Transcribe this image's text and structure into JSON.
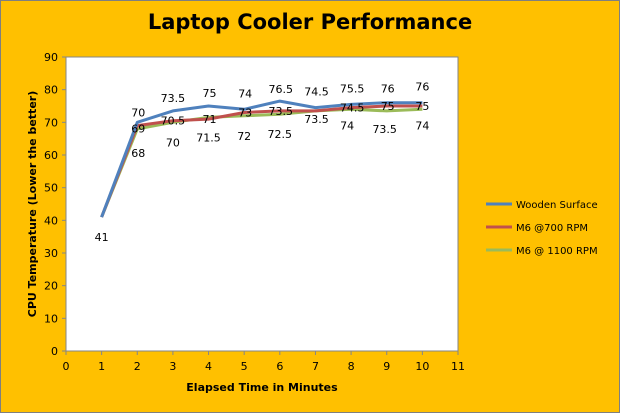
{
  "chart_data": {
    "type": "line",
    "title": "Laptop Cooler Performance",
    "xlabel": "Elapsed Time in Minutes",
    "ylabel": "CPU Temperature (Lower the better)",
    "xlim": [
      0,
      11
    ],
    "ylim": [
      0,
      90
    ],
    "x_ticks": [
      0,
      1,
      2,
      3,
      4,
      5,
      6,
      7,
      8,
      9,
      10,
      11
    ],
    "y_ticks": [
      0,
      10,
      20,
      30,
      40,
      50,
      60,
      70,
      80,
      90
    ],
    "grid": false,
    "legend_position": "right",
    "x": [
      1,
      2,
      3,
      4,
      5,
      6,
      7,
      8,
      9,
      10
    ],
    "series": [
      {
        "name": "Wooden Surface",
        "color": "#4F81BD",
        "values": [
          41,
          70,
          73.5,
          75,
          74,
          76.5,
          74.5,
          75.5,
          76,
          76
        ]
      },
      {
        "name": "M6 @700 RPM",
        "color": "#C0504D",
        "values": [
          41,
          69,
          70.5,
          71,
          73,
          73.5,
          73.5,
          74.5,
          75,
          75
        ]
      },
      {
        "name": "M6 @ 1100 RPM",
        "color": "#9BBB59",
        "values": [
          41,
          68,
          70,
          71.5,
          72,
          72.5,
          73.5,
          74,
          73.5,
          74
        ]
      }
    ],
    "data_labels": [
      {
        "x": 1,
        "y": 41,
        "text": "41"
      },
      {
        "x": 2,
        "y": 70,
        "text": "70"
      },
      {
        "x": 2,
        "y": 69,
        "text": "69"
      },
      {
        "x": 2,
        "y": 68,
        "text": "68"
      },
      {
        "x": 3,
        "y": 73.5,
        "text": "73.5"
      },
      {
        "x": 3,
        "y": 70.5,
        "text": "70.5"
      },
      {
        "x": 3,
        "y": 70,
        "text": "70"
      },
      {
        "x": 4,
        "y": 75,
        "text": "75"
      },
      {
        "x": 4,
        "y": 71,
        "text": "71"
      },
      {
        "x": 4,
        "y": 71.5,
        "text": "71.5"
      },
      {
        "x": 5,
        "y": 74,
        "text": "74"
      },
      {
        "x": 5,
        "y": 73,
        "text": "73"
      },
      {
        "x": 5,
        "y": 72,
        "text": "72"
      },
      {
        "x": 6,
        "y": 76.5,
        "text": "76.5"
      },
      {
        "x": 6,
        "y": 73.5,
        "text": "73.5"
      },
      {
        "x": 6,
        "y": 72.5,
        "text": "72.5"
      },
      {
        "x": 7,
        "y": 74.5,
        "text": "74.5"
      },
      {
        "x": 7,
        "y": 73.5,
        "text": "73.5"
      },
      {
        "x": 8,
        "y": 75.5,
        "text": "75.5"
      },
      {
        "x": 8,
        "y": 74.5,
        "text": "74.5"
      },
      {
        "x": 8,
        "y": 74,
        "text": "74"
      },
      {
        "x": 9,
        "y": 76,
        "text": "76"
      },
      {
        "x": 9,
        "y": 75,
        "text": "75"
      },
      {
        "x": 9,
        "y": 73.5,
        "text": "73.5"
      },
      {
        "x": 10,
        "y": 76,
        "text": "76"
      },
      {
        "x": 10,
        "y": 75,
        "text": "75"
      },
      {
        "x": 10,
        "y": 74,
        "text": "74"
      }
    ]
  }
}
